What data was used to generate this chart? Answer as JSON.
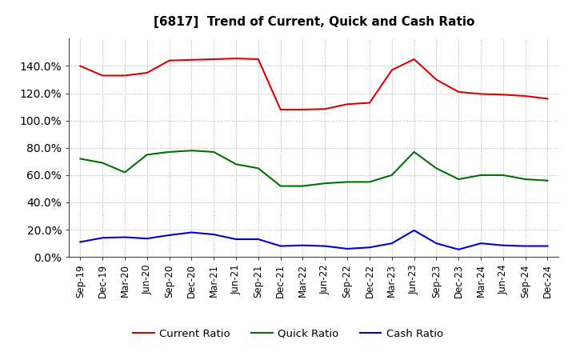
{
  "title": "[6817]  Trend of Current, Quick and Cash Ratio",
  "x_labels": [
    "Sep-19",
    "Dec-19",
    "Mar-20",
    "Jun-20",
    "Sep-20",
    "Dec-20",
    "Mar-21",
    "Jun-21",
    "Sep-21",
    "Dec-21",
    "Mar-22",
    "Jun-22",
    "Sep-22",
    "Dec-22",
    "Mar-23",
    "Jun-23",
    "Sep-23",
    "Dec-23",
    "Mar-24",
    "Jun-24",
    "Sep-24",
    "Dec-24"
  ],
  "current_ratio": [
    140.0,
    133.0,
    133.0,
    135.0,
    144.0,
    144.5,
    145.0,
    145.5,
    145.0,
    108.0,
    108.0,
    108.5,
    112.0,
    113.0,
    137.0,
    145.0,
    130.0,
    121.0,
    119.5,
    119.0,
    118.0,
    116.0
  ],
  "quick_ratio": [
    72.0,
    69.0,
    62.0,
    75.0,
    77.0,
    78.0,
    77.0,
    68.0,
    65.0,
    52.0,
    52.0,
    54.0,
    55.0,
    55.0,
    60.0,
    77.0,
    65.0,
    57.0,
    60.0,
    60.0,
    57.0,
    56.0
  ],
  "cash_ratio": [
    11.0,
    14.0,
    14.5,
    13.5,
    16.0,
    18.0,
    16.5,
    13.0,
    13.0,
    8.0,
    8.5,
    8.0,
    6.0,
    7.0,
    10.0,
    19.5,
    10.0,
    5.5,
    10.0,
    8.5,
    8.0,
    8.0
  ],
  "current_color": "#e00000",
  "quick_color": "#007000",
  "cash_color": "#0000dd",
  "ylim_max": 160.0,
  "ytick_vals": [
    0.0,
    20.0,
    40.0,
    60.0,
    80.0,
    100.0,
    120.0,
    140.0
  ],
  "ytick_labels": [
    "0.0%",
    "20.0%",
    "40.0%",
    "60.0%",
    "80.0%",
    "100.0%",
    "120.0%",
    "140.0%"
  ],
  "background_color": "#ffffff",
  "grid_color": "#999999",
  "legend_labels": [
    "Current Ratio",
    "Quick Ratio",
    "Cash Ratio"
  ]
}
